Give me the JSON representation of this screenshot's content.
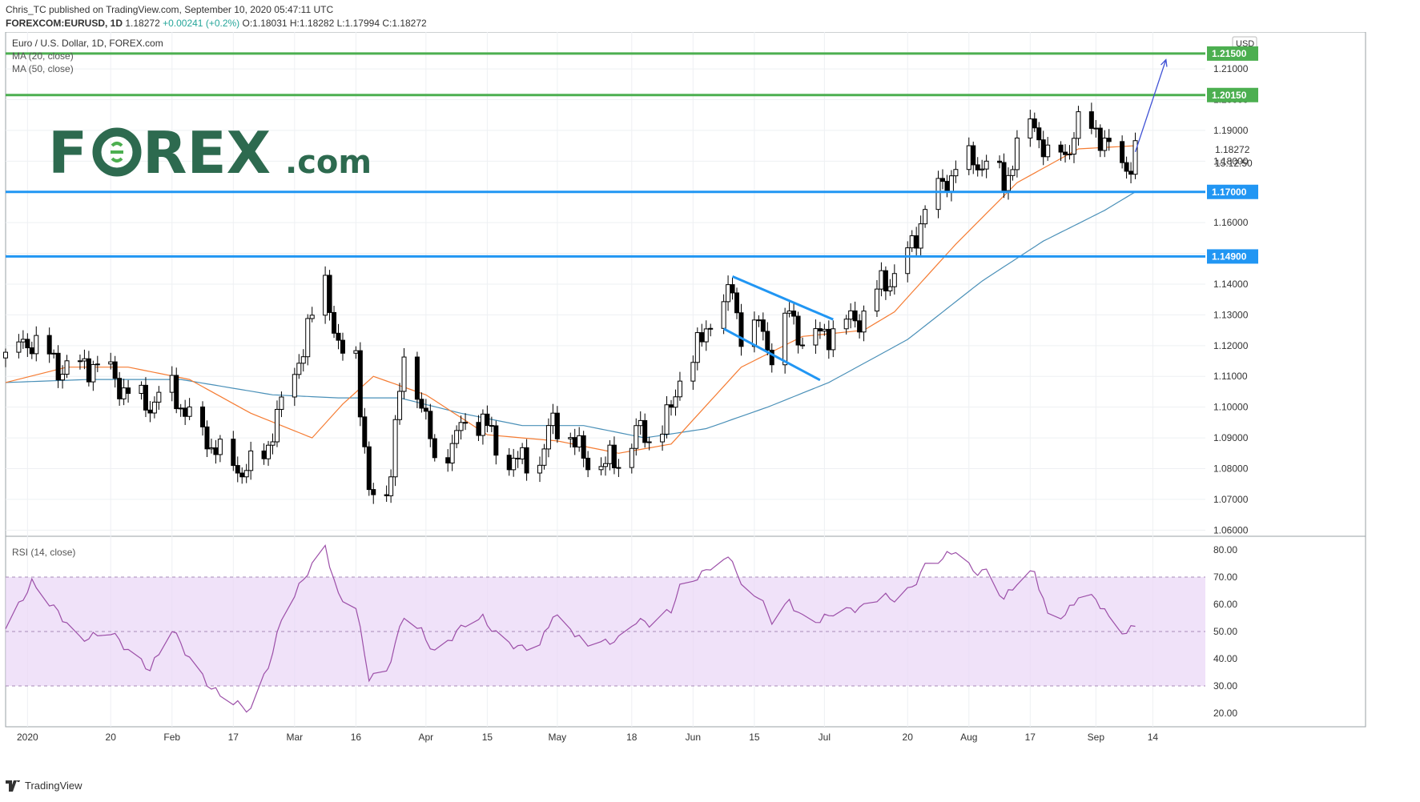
{
  "header": {
    "publisher": "Chris_TC published on TradingView.com, September 10, 2020 05:47:11 UTC",
    "symbol": "FOREXCOM:EURUSD, 1D",
    "last": "1.18272",
    "change": "+0.00241 (+0.2%)",
    "ohlc": "O:1.18031 H:1.18282 L:1.17994 C:1.18272"
  },
  "footer": {
    "brand": "TradingView"
  },
  "main_legend": {
    "title": "Euro / U.S. Dollar, 1D, FOREX.com",
    "ma20": "MA (20, close)",
    "ma50": "MA (50, close)"
  },
  "rsi_legend": "RSI (14, close)",
  "watermark": {
    "part1": "F",
    "part2": "REX",
    "part3": ".com"
  },
  "colors": {
    "up": "#ffffff",
    "down": "#000000",
    "ma20": "#f57c33",
    "ma50": "#4a90b8",
    "support": "#2196f3",
    "target": "#4caf50",
    "rsi": "#9c4fa8",
    "rsi_band": "#ead6f7",
    "arrow": "#3f51d5",
    "brand_green": "#2d6a4f"
  },
  "chart_data": {
    "type": "candlestick",
    "title": "Euro / U.S. Dollar, 1D, FOREX.com",
    "currency": "USD",
    "yticks": [
      1.06,
      1.07,
      1.08,
      1.09,
      1.1,
      1.11,
      1.12,
      1.13,
      1.14,
      1.15,
      1.16,
      1.17,
      1.18,
      1.19,
      1.2,
      1.21
    ],
    "ylim": [
      1.058,
      1.222
    ],
    "xticks": [
      {
        "date": "2020-01-01",
        "label": "2020"
      },
      {
        "date": "2020-01-20",
        "label": "20"
      },
      {
        "date": "2020-02-03",
        "label": "Feb"
      },
      {
        "date": "2020-02-17",
        "label": "17"
      },
      {
        "date": "2020-03-02",
        "label": "Mar"
      },
      {
        "date": "2020-03-16",
        "label": "16"
      },
      {
        "date": "2020-04-01",
        "label": "Apr"
      },
      {
        "date": "2020-04-15",
        "label": "15"
      },
      {
        "date": "2020-05-01",
        "label": "May"
      },
      {
        "date": "2020-05-18",
        "label": "18"
      },
      {
        "date": "2020-06-01",
        "label": "Jun"
      },
      {
        "date": "2020-06-15",
        "label": "15"
      },
      {
        "date": "2020-07-01",
        "label": "Jul"
      },
      {
        "date": "2020-07-20",
        "label": "20"
      },
      {
        "date": "2020-08-03",
        "label": "Aug"
      },
      {
        "date": "2020-08-17",
        "label": "17"
      },
      {
        "date": "2020-09-01",
        "label": "Sep"
      },
      {
        "date": "2020-09-14",
        "label": "14"
      }
    ],
    "horizontal_levels": [
      {
        "value": 1.215,
        "label": "1.21500",
        "color": "#4caf50"
      },
      {
        "value": 1.2015,
        "label": "1.20150",
        "color": "#4caf50"
      },
      {
        "value": 1.17,
        "label": "1.17000",
        "color": "#2196f3"
      },
      {
        "value": 1.149,
        "label": "1.14900",
        "color": "#2196f3"
      }
    ],
    "last_price": {
      "value": 1.18272,
      "label": "1.18272",
      "countdown": "15:12:50"
    },
    "trendlines": [
      {
        "from": {
          "date": "2020-06-10",
          "price": 1.1425
        },
        "to": {
          "date": "2020-07-03",
          "price": 1.1285
        }
      },
      {
        "from": {
          "date": "2020-06-08",
          "price": 1.1255
        },
        "to": {
          "date": "2020-06-30",
          "price": 1.1088
        }
      }
    ],
    "arrow": {
      "from": {
        "date": "2020-09-10",
        "price": 1.183
      },
      "to": {
        "date": "2020-09-17",
        "price": 1.213
      }
    },
    "anchors": [
      [
        "2019-12-27",
        1.116
      ],
      [
        "2020-01-02",
        1.122
      ],
      [
        "2020-01-08",
        1.113
      ],
      [
        "2020-01-13",
        1.113
      ],
      [
        "2020-01-16",
        1.114
      ],
      [
        "2020-01-20",
        1.111
      ],
      [
        "2020-01-24",
        1.104
      ],
      [
        "2020-01-29",
        1.101
      ],
      [
        "2020-02-03",
        1.106
      ],
      [
        "2020-02-07",
        1.096
      ],
      [
        "2020-02-11",
        1.09
      ],
      [
        "2020-02-14",
        1.084
      ],
      [
        "2020-02-20",
        1.079
      ],
      [
        "2020-02-24",
        1.085
      ],
      [
        "2020-02-28",
        1.1
      ],
      [
        "2020-03-05",
        1.124
      ],
      [
        "2020-03-09",
        1.143
      ],
      [
        "2020-03-12",
        1.117
      ],
      [
        "2020-03-16",
        1.118
      ],
      [
        "2020-03-19",
        1.07
      ],
      [
        "2020-03-23",
        1.072
      ],
      [
        "2020-03-27",
        1.114
      ],
      [
        "2020-03-31",
        1.103
      ],
      [
        "2020-04-03",
        1.081
      ],
      [
        "2020-04-07",
        1.089
      ],
      [
        "2020-04-10",
        1.094
      ],
      [
        "2020-04-14",
        1.097
      ],
      [
        "2020-04-17",
        1.086
      ],
      [
        "2020-04-22",
        1.082
      ],
      [
        "2020-04-27",
        1.083
      ],
      [
        "2020-04-30",
        1.095
      ],
      [
        "2020-05-04",
        1.091
      ],
      [
        "2020-05-07",
        1.083
      ],
      [
        "2020-05-12",
        1.082
      ],
      [
        "2020-05-15",
        1.082
      ],
      [
        "2020-05-19",
        1.092
      ],
      [
        "2020-05-22",
        1.09
      ],
      [
        "2020-05-27",
        1.098
      ],
      [
        "2020-05-29",
        1.111
      ],
      [
        "2020-06-03",
        1.121
      ],
      [
        "2020-06-05",
        1.13
      ],
      [
        "2020-06-10",
        1.137
      ],
      [
        "2020-06-12",
        1.125
      ],
      [
        "2020-06-16",
        1.126
      ],
      [
        "2020-06-19",
        1.118
      ],
      [
        "2020-06-23",
        1.13
      ],
      [
        "2020-06-26",
        1.122
      ],
      [
        "2020-06-30",
        1.123
      ],
      [
        "2020-07-03",
        1.125
      ],
      [
        "2020-07-07",
        1.128
      ],
      [
        "2020-07-10",
        1.13
      ],
      [
        "2020-07-14",
        1.14
      ],
      [
        "2020-07-17",
        1.143
      ],
      [
        "2020-07-21",
        1.152
      ],
      [
        "2020-07-24",
        1.165
      ],
      [
        "2020-07-28",
        1.172
      ],
      [
        "2020-07-31",
        1.178
      ],
      [
        "2020-08-04",
        1.18
      ],
      [
        "2020-08-07",
        1.179
      ],
      [
        "2020-08-11",
        1.173
      ],
      [
        "2020-08-14",
        1.184
      ],
      [
        "2020-08-18",
        1.193
      ],
      [
        "2020-08-21",
        1.18
      ],
      [
        "2020-08-25",
        1.183
      ],
      [
        "2020-08-28",
        1.191
      ],
      [
        "2020-09-01",
        1.191
      ],
      [
        "2020-09-04",
        1.183
      ],
      [
        "2020-09-08",
        1.178
      ],
      [
        "2020-09-10",
        1.183
      ]
    ],
    "ma20_anchors": [
      [
        "2019-12-27",
        1.108
      ],
      [
        "2020-01-10",
        1.113
      ],
      [
        "2020-01-24",
        1.113
      ],
      [
        "2020-02-07",
        1.109
      ],
      [
        "2020-02-21",
        1.098
      ],
      [
        "2020-03-06",
        1.09
      ],
      [
        "2020-03-13",
        1.101
      ],
      [
        "2020-03-20",
        1.11
      ],
      [
        "2020-04-01",
        1.104
      ],
      [
        "2020-04-15",
        1.091
      ],
      [
        "2020-05-01",
        1.089
      ],
      [
        "2020-05-15",
        1.085
      ],
      [
        "2020-05-27",
        1.088
      ],
      [
        "2020-06-12",
        1.113
      ],
      [
        "2020-06-26",
        1.123
      ],
      [
        "2020-07-10",
        1.125
      ],
      [
        "2020-07-17",
        1.131
      ],
      [
        "2020-07-31",
        1.153
      ],
      [
        "2020-08-14",
        1.173
      ],
      [
        "2020-08-28",
        1.184
      ],
      [
        "2020-09-10",
        1.185
      ]
    ],
    "ma50_anchors": [
      [
        "2019-12-27",
        1.108
      ],
      [
        "2020-01-15",
        1.109
      ],
      [
        "2020-02-05",
        1.109
      ],
      [
        "2020-02-26",
        1.104
      ],
      [
        "2020-03-12",
        1.103
      ],
      [
        "2020-03-26",
        1.103
      ],
      [
        "2020-04-09",
        1.098
      ],
      [
        "2020-04-23",
        1.094
      ],
      [
        "2020-05-07",
        1.094
      ],
      [
        "2020-05-21",
        1.09
      ],
      [
        "2020-06-04",
        1.093
      ],
      [
        "2020-06-18",
        1.1
      ],
      [
        "2020-07-02",
        1.108
      ],
      [
        "2020-07-20",
        1.122
      ],
      [
        "2020-08-06",
        1.141
      ],
      [
        "2020-08-20",
        1.154
      ],
      [
        "2020-09-03",
        1.164
      ],
      [
        "2020-09-10",
        1.17
      ]
    ],
    "rsi": {
      "label": "RSI (14, close)",
      "yticks": [
        20,
        30,
        40,
        50,
        60,
        70,
        80
      ],
      "ylim": [
        15,
        85
      ],
      "band": [
        30,
        70
      ],
      "anchors": [
        [
          "2019-12-27",
          51
        ],
        [
          "2020-01-02",
          68
        ],
        [
          "2020-01-08",
          57
        ],
        [
          "2020-01-13",
          47
        ],
        [
          "2020-01-20",
          50
        ],
        [
          "2020-01-24",
          43
        ],
        [
          "2020-01-29",
          36
        ],
        [
          "2020-02-03",
          51
        ],
        [
          "2020-02-07",
          40
        ],
        [
          "2020-02-12",
          29
        ],
        [
          "2020-02-17",
          24
        ],
        [
          "2020-02-21",
          21
        ],
        [
          "2020-02-26",
          42
        ],
        [
          "2020-02-28",
          55
        ],
        [
          "2020-03-05",
          72
        ],
        [
          "2020-03-09",
          81
        ],
        [
          "2020-03-12",
          63
        ],
        [
          "2020-03-16",
          59
        ],
        [
          "2020-03-19",
          33
        ],
        [
          "2020-03-23",
          35
        ],
        [
          "2020-03-27",
          56
        ],
        [
          "2020-03-31",
          50
        ],
        [
          "2020-04-03",
          42
        ],
        [
          "2020-04-07",
          48
        ],
        [
          "2020-04-10",
          53
        ],
        [
          "2020-04-14",
          55
        ],
        [
          "2020-04-17",
          49
        ],
        [
          "2020-04-22",
          44
        ],
        [
          "2020-04-27",
          45
        ],
        [
          "2020-04-30",
          56
        ],
        [
          "2020-05-04",
          51
        ],
        [
          "2020-05-07",
          46
        ],
        [
          "2020-05-12",
          46
        ],
        [
          "2020-05-15",
          47
        ],
        [
          "2020-05-19",
          54
        ],
        [
          "2020-05-22",
          53
        ],
        [
          "2020-05-27",
          58
        ],
        [
          "2020-05-29",
          66
        ],
        [
          "2020-06-03",
          71
        ],
        [
          "2020-06-05",
          74
        ],
        [
          "2020-06-10",
          77
        ],
        [
          "2020-06-12",
          66
        ],
        [
          "2020-06-16",
          63
        ],
        [
          "2020-06-19",
          54
        ],
        [
          "2020-06-23",
          61
        ],
        [
          "2020-06-26",
          55
        ],
        [
          "2020-06-30",
          54
        ],
        [
          "2020-07-03",
          57
        ],
        [
          "2020-07-07",
          58
        ],
        [
          "2020-07-10",
          59
        ],
        [
          "2020-07-14",
          63
        ],
        [
          "2020-07-17",
          62
        ],
        [
          "2020-07-21",
          66
        ],
        [
          "2020-07-24",
          74
        ],
        [
          "2020-07-28",
          77
        ],
        [
          "2020-07-31",
          80
        ],
        [
          "2020-08-04",
          72
        ],
        [
          "2020-08-07",
          72
        ],
        [
          "2020-08-11",
          62
        ],
        [
          "2020-08-14",
          68
        ],
        [
          "2020-08-18",
          72
        ],
        [
          "2020-08-21",
          56
        ],
        [
          "2020-08-25",
          56
        ],
        [
          "2020-08-28",
          63
        ],
        [
          "2020-09-01",
          62
        ],
        [
          "2020-09-04",
          55
        ],
        [
          "2020-09-08",
          49
        ],
        [
          "2020-09-10",
          53
        ]
      ]
    }
  }
}
